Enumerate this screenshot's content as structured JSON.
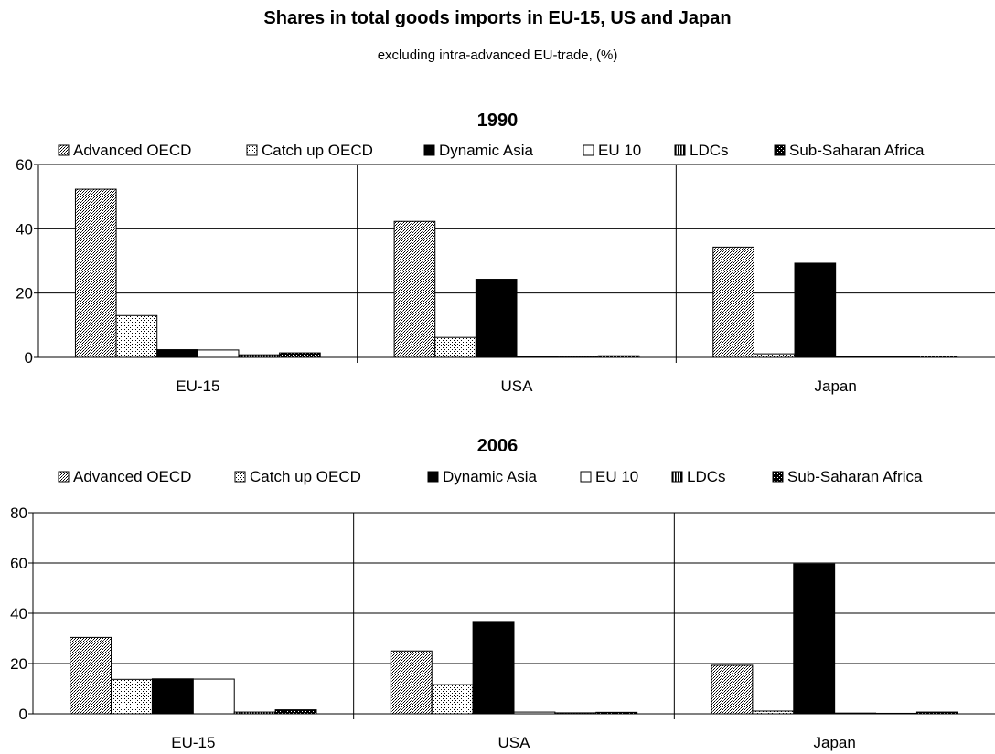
{
  "title": "Shares in total goods imports in EU-15, US and Japan",
  "subtitle": "excluding intra-advanced EU-trade, (%)",
  "chart_data": [
    {
      "type": "bar",
      "title": "1990",
      "categories": [
        "EU-15",
        "USA",
        "Japan"
      ],
      "ylim": [
        0,
        60
      ],
      "yticks": [
        0,
        20,
        40,
        60
      ],
      "grid": true,
      "legend_position": "top",
      "series": [
        {
          "name": "Advanced OECD",
          "values": [
            52.3,
            42.3,
            34.3
          ]
        },
        {
          "name": "Catch up OECD",
          "values": [
            13.0,
            6.2,
            1.1
          ]
        },
        {
          "name": "Dynamic Asia",
          "values": [
            2.4,
            24.3,
            29.3
          ]
        },
        {
          "name": "EU 10",
          "values": [
            2.3,
            0.2,
            0.2
          ]
        },
        {
          "name": "LDCs",
          "values": [
            0.8,
            0.3,
            0.2
          ]
        },
        {
          "name": "Sub-Saharan Africa",
          "values": [
            1.4,
            0.5,
            0.4
          ]
        }
      ]
    },
    {
      "type": "bar",
      "title": "2006",
      "categories": [
        "EU-15",
        "USA",
        "Japan"
      ],
      "ylim": [
        0,
        80
      ],
      "yticks": [
        0,
        20,
        40,
        60,
        80
      ],
      "grid": true,
      "legend_position": "top",
      "series": [
        {
          "name": "Advanced OECD",
          "values": [
            30.4,
            25.0,
            19.3
          ]
        },
        {
          "name": "Catch up OECD",
          "values": [
            13.7,
            11.6,
            1.1
          ]
        },
        {
          "name": "Dynamic Asia",
          "values": [
            13.9,
            36.4,
            59.6
          ]
        },
        {
          "name": "EU 10",
          "values": [
            13.8,
            0.7,
            0.3
          ]
        },
        {
          "name": "LDCs",
          "values": [
            0.7,
            0.4,
            0.2
          ]
        },
        {
          "name": "Sub-Saharan Africa",
          "values": [
            1.6,
            0.6,
            0.7
          ]
        }
      ]
    }
  ]
}
